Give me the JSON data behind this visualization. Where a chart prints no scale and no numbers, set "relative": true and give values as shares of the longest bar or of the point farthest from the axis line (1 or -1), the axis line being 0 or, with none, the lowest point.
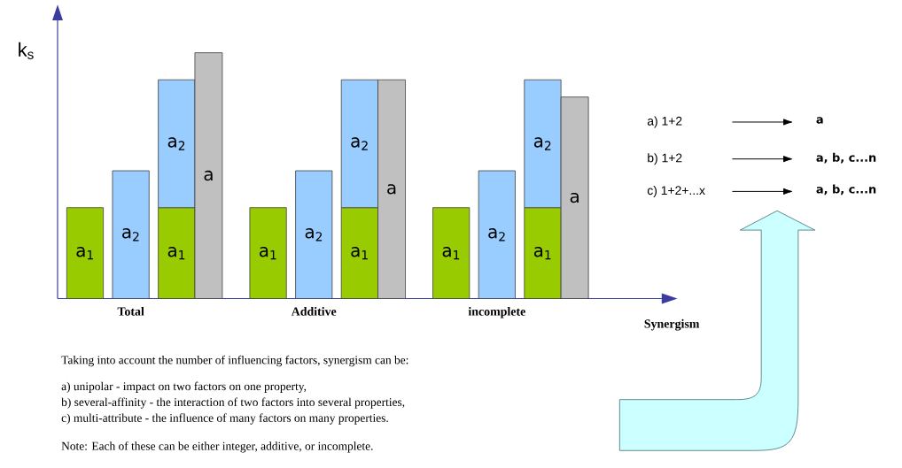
{
  "chart_data": {
    "type": "bar",
    "relative": true,
    "stacked": true,
    "xlabel": "Synergism",
    "ylabel": "k$_{s}$",
    "categories": [
      null,
      "Total",
      null,
      null,
      null,
      "Additive",
      null,
      null,
      null,
      "incomplete",
      null,
      null
    ],
    "series": [
      {
        "name": "a$_{1}$",
        "color": "#99cc00",
        "values": [
          0.37,
          null,
          0.37,
          null,
          0.37,
          null,
          0.37,
          null,
          0.37,
          null,
          0.37,
          null
        ]
      },
      {
        "name": "a$_{2}$",
        "color": "#99ccff",
        "values": [
          null,
          0.52,
          0.52,
          null,
          null,
          0.52,
          0.52,
          null,
          null,
          0.52,
          0.52,
          null
        ]
      },
      {
        "name": "a",
        "color": "#c0c0c0",
        "values": [
          null,
          null,
          null,
          1,
          null,
          null,
          null,
          0.89,
          null,
          null,
          null,
          0.82
        ]
      }
    ],
    "annotations": [
      "a) 1+2",
      "a",
      "b) 1+2",
      "a, b, c...n",
      "c) 1+2+...x",
      "a, b, c...n",
      "Taking into account the number of influencing factors, synergism can be:",
      "a) unipolar - impact on two factors on one property,",
      "b) several-affinity - the interaction of two factors into several properties,",
      "c) multi-attribute - the influence of many factors on many properties.",
      "Note: Each of these can be either integer, additive, or incomplete."
    ]
  }
}
